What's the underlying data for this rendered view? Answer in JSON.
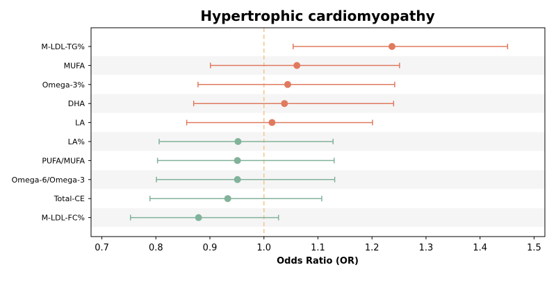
{
  "chart_data": {
    "type": "forest",
    "title": "Hypertrophic cardiomyopathy",
    "xlabel": "Odds Ratio (OR)",
    "ylabel": "",
    "xlim": [
      0.68,
      1.52
    ],
    "xticks": [
      0.7,
      0.8,
      0.9,
      1.0,
      1.1,
      1.2,
      1.3,
      1.4,
      1.5
    ],
    "xtick_labels": [
      "0.7",
      "0.8",
      "0.9",
      "1.0",
      "1.1",
      "1.2",
      "1.3",
      "1.4",
      "1.5"
    ],
    "reference_line": 1.0,
    "grid": false,
    "row_banding": true,
    "colors": {
      "positive": "#e07a5f",
      "negative": "#81b29a",
      "reference": "#f2c48d",
      "band": "#f5f5f5"
    },
    "rows": [
      {
        "label": "M-LDL-TG%",
        "or": 1.237,
        "lower": 1.054,
        "upper": 1.451,
        "group": "positive"
      },
      {
        "label": "MUFA",
        "or": 1.061,
        "lower": 0.901,
        "upper": 1.251,
        "group": "positive"
      },
      {
        "label": "Omega-3%",
        "or": 1.044,
        "lower": 0.878,
        "upper": 1.242,
        "group": "positive"
      },
      {
        "label": "DHA",
        "or": 1.038,
        "lower": 0.87,
        "upper": 1.24,
        "group": "positive"
      },
      {
        "label": "LA",
        "or": 1.015,
        "lower": 0.857,
        "upper": 1.201,
        "group": "positive"
      },
      {
        "label": "LA%",
        "or": 0.952,
        "lower": 0.806,
        "upper": 1.128,
        "group": "negative"
      },
      {
        "label": "PUFA/MUFA",
        "or": 0.951,
        "lower": 0.803,
        "upper": 1.13,
        "group": "negative"
      },
      {
        "label": "Omega-6/Omega-3",
        "or": 0.951,
        "lower": 0.801,
        "upper": 1.131,
        "group": "negative"
      },
      {
        "label": "Total-CE",
        "or": 0.933,
        "lower": 0.789,
        "upper": 1.107,
        "group": "negative"
      },
      {
        "label": "M-LDL-FC%",
        "or": 0.879,
        "lower": 0.753,
        "upper": 1.027,
        "group": "negative"
      }
    ]
  }
}
